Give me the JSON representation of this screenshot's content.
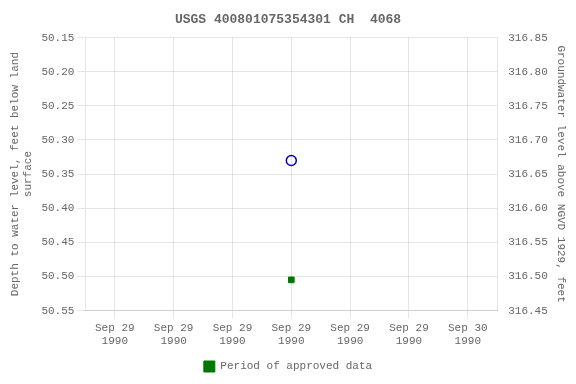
{
  "chart_data": {
    "type": "scatter",
    "title": "USGS 400801075354301 CH  4068",
    "categories": [
      "Sep 29\n1990",
      "Sep 29\n1990",
      "Sep 29\n1990",
      "Sep 29\n1990",
      "Sep 29\n1990",
      "Sep 29\n1990",
      "Sep 30\n1990"
    ],
    "y_label": "Depth to water level, feet below land\n surface",
    "y2_label": "Groundwater level above NGVD 1929, feet",
    "ylim": [
      50.55,
      50.15
    ],
    "yticks": [
      50.15,
      {
        "value": 50.2,
        "label": "50.20"
      },
      50.25,
      {
        "value": 50.3,
        "label": "50.30"
      },
      50.35,
      {
        "value": 50.4,
        "label": "50.40"
      },
      50.45,
      {
        "value": 50.5,
        "label": "50.50"
      },
      50.55
    ],
    "y2lim": [
      316.45,
      316.85
    ],
    "y2ticks": [
      316.45,
      {
        "value": 316.5,
        "label": "316.50"
      },
      316.55,
      {
        "value": 316.6,
        "label": "316.60"
      },
      316.65,
      {
        "value": 316.7,
        "label": "316.70"
      },
      316.75,
      {
        "value": 316.8,
        "label": "316.80"
      },
      316.85
    ],
    "grid": true,
    "legend": "bottom",
    "series": [
      {
        "color": "#0000cc",
        "marker": "circle",
        "values": [
          null,
          null,
          null,
          50.33,
          null,
          null,
          null
        ]
      },
      {
        "name": "Period of approved data",
        "color": "#007700",
        "marker": "square",
        "values": [
          null,
          null,
          null,
          50.505,
          null,
          null,
          null
        ]
      }
    ]
  }
}
